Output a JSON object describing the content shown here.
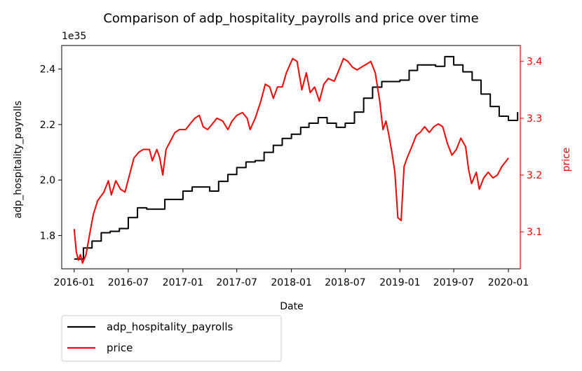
{
  "chart_data": {
    "type": "line",
    "title": "Comparison of adp_hospitality_payrolls and price over time",
    "xlabel": "Date",
    "ylabel_left": "adp_hospitality_payrolls",
    "ylabel_right": "price",
    "left_offset_text": "1e35",
    "x_ticks": [
      "2016-01",
      "2016-07",
      "2017-01",
      "2017-07",
      "2018-01",
      "2018-07",
      "2019-01",
      "2019-07",
      "2020-01"
    ],
    "y_left_ticks": [
      "1.8",
      "2.0",
      "2.2",
      "2.4"
    ],
    "y_right_ticks": [
      "3.1",
      "3.2",
      "3.3",
      "3.4"
    ],
    "xlim": [
      "2015-11-20",
      "2020-02-10"
    ],
    "ylim_left": [
      1.68,
      2.485
    ],
    "ylim_right": [
      3.035,
      3.428
    ],
    "legend_position": "below-left",
    "colors": {
      "adp_hospitality_payrolls": "#000000",
      "price": "#ff0000"
    },
    "series": [
      {
        "name": "adp_hospitality_payrolls",
        "axis": "left",
        "color": "#000000",
        "step": true,
        "points": [
          [
            "2016-01-01",
            1.715
          ],
          [
            "2016-02-01",
            1.755
          ],
          [
            "2016-03-01",
            1.78
          ],
          [
            "2016-04-01",
            1.81
          ],
          [
            "2016-05-01",
            1.815
          ],
          [
            "2016-06-01",
            1.825
          ],
          [
            "2016-07-01",
            1.865
          ],
          [
            "2016-08-01",
            1.9
          ],
          [
            "2016-09-01",
            1.895
          ],
          [
            "2016-10-01",
            1.895
          ],
          [
            "2016-11-01",
            1.93
          ],
          [
            "2016-12-01",
            1.93
          ],
          [
            "2017-01-01",
            1.96
          ],
          [
            "2017-02-01",
            1.975
          ],
          [
            "2017-03-01",
            1.975
          ],
          [
            "2017-04-01",
            1.96
          ],
          [
            "2017-05-01",
            1.995
          ],
          [
            "2017-06-01",
            2.02
          ],
          [
            "2017-07-01",
            2.045
          ],
          [
            "2017-08-01",
            2.065
          ],
          [
            "2017-09-01",
            2.07
          ],
          [
            "2017-10-01",
            2.1
          ],
          [
            "2017-11-01",
            2.125
          ],
          [
            "2017-12-01",
            2.15
          ],
          [
            "2018-01-01",
            2.165
          ],
          [
            "2018-02-01",
            2.19
          ],
          [
            "2018-03-01",
            2.205
          ],
          [
            "2018-04-01",
            2.225
          ],
          [
            "2018-05-01",
            2.205
          ],
          [
            "2018-06-01",
            2.19
          ],
          [
            "2018-07-01",
            2.205
          ],
          [
            "2018-08-01",
            2.245
          ],
          [
            "2018-09-01",
            2.295
          ],
          [
            "2018-10-01",
            2.335
          ],
          [
            "2018-11-01",
            2.355
          ],
          [
            "2018-12-01",
            2.355
          ],
          [
            "2019-01-01",
            2.36
          ],
          [
            "2019-02-01",
            2.395
          ],
          [
            "2019-03-01",
            2.415
          ],
          [
            "2019-04-01",
            2.415
          ],
          [
            "2019-05-01",
            2.41
          ],
          [
            "2019-06-01",
            2.445
          ],
          [
            "2019-07-01",
            2.415
          ],
          [
            "2019-08-01",
            2.39
          ],
          [
            "2019-09-01",
            2.36
          ],
          [
            "2019-10-01",
            2.31
          ],
          [
            "2019-11-01",
            2.265
          ],
          [
            "2019-12-01",
            2.23
          ],
          [
            "2020-01-01",
            2.215
          ],
          [
            "2020-02-01",
            2.245
          ]
        ]
      },
      {
        "name": "price",
        "axis": "right",
        "color": "#ff0000",
        "step": false,
        "points": [
          [
            "2016-01-01",
            3.105
          ],
          [
            "2016-01-08",
            3.065
          ],
          [
            "2016-01-15",
            3.05
          ],
          [
            "2016-01-22",
            3.06
          ],
          [
            "2016-01-29",
            3.045
          ],
          [
            "2016-02-10",
            3.06
          ],
          [
            "2016-02-20",
            3.09
          ],
          [
            "2016-03-05",
            3.13
          ],
          [
            "2016-03-20",
            3.155
          ],
          [
            "2016-04-10",
            3.17
          ],
          [
            "2016-04-25",
            3.19
          ],
          [
            "2016-05-05",
            3.165
          ],
          [
            "2016-05-20",
            3.19
          ],
          [
            "2016-06-05",
            3.175
          ],
          [
            "2016-06-20",
            3.17
          ],
          [
            "2016-07-05",
            3.2
          ],
          [
            "2016-07-20",
            3.23
          ],
          [
            "2016-08-05",
            3.24
          ],
          [
            "2016-08-20",
            3.245
          ],
          [
            "2016-09-10",
            3.245
          ],
          [
            "2016-09-20",
            3.225
          ],
          [
            "2016-10-05",
            3.245
          ],
          [
            "2016-10-15",
            3.23
          ],
          [
            "2016-10-25",
            3.2
          ],
          [
            "2016-11-05",
            3.245
          ],
          [
            "2016-11-20",
            3.26
          ],
          [
            "2016-12-05",
            3.275
          ],
          [
            "2016-12-20",
            3.28
          ],
          [
            "2017-01-10",
            3.28
          ],
          [
            "2017-01-25",
            3.29
          ],
          [
            "2017-02-10",
            3.3
          ],
          [
            "2017-02-25",
            3.305
          ],
          [
            "2017-03-10",
            3.285
          ],
          [
            "2017-03-25",
            3.28
          ],
          [
            "2017-04-10",
            3.29
          ],
          [
            "2017-04-25",
            3.3
          ],
          [
            "2017-05-15",
            3.295
          ],
          [
            "2017-06-01",
            3.28
          ],
          [
            "2017-06-15",
            3.295
          ],
          [
            "2017-07-01",
            3.305
          ],
          [
            "2017-07-20",
            3.31
          ],
          [
            "2017-08-05",
            3.3
          ],
          [
            "2017-08-15",
            3.28
          ],
          [
            "2017-09-01",
            3.3
          ],
          [
            "2017-09-20",
            3.33
          ],
          [
            "2017-10-05",
            3.36
          ],
          [
            "2017-10-20",
            3.355
          ],
          [
            "2017-11-01",
            3.335
          ],
          [
            "2017-11-15",
            3.355
          ],
          [
            "2017-12-01",
            3.355
          ],
          [
            "2017-12-15",
            3.38
          ],
          [
            "2018-01-05",
            3.405
          ],
          [
            "2018-01-20",
            3.4
          ],
          [
            "2018-02-05",
            3.35
          ],
          [
            "2018-02-20",
            3.38
          ],
          [
            "2018-03-05",
            3.345
          ],
          [
            "2018-03-20",
            3.355
          ],
          [
            "2018-04-05",
            3.33
          ],
          [
            "2018-04-20",
            3.36
          ],
          [
            "2018-05-05",
            3.37
          ],
          [
            "2018-05-25",
            3.365
          ],
          [
            "2018-06-10",
            3.385
          ],
          [
            "2018-06-25",
            3.405
          ],
          [
            "2018-07-10",
            3.4
          ],
          [
            "2018-07-25",
            3.39
          ],
          [
            "2018-08-10",
            3.385
          ],
          [
            "2018-08-25",
            3.39
          ],
          [
            "2018-09-10",
            3.395
          ],
          [
            "2018-09-25",
            3.4
          ],
          [
            "2018-10-10",
            3.38
          ],
          [
            "2018-10-25",
            3.33
          ],
          [
            "2018-11-05",
            3.28
          ],
          [
            "2018-11-15",
            3.295
          ],
          [
            "2018-11-25",
            3.27
          ],
          [
            "2018-12-05",
            3.24
          ],
          [
            "2018-12-15",
            3.205
          ],
          [
            "2018-12-25",
            3.125
          ],
          [
            "2019-01-05",
            3.12
          ],
          [
            "2019-01-15",
            3.215
          ],
          [
            "2019-01-25",
            3.23
          ],
          [
            "2019-02-10",
            3.25
          ],
          [
            "2019-02-25",
            3.27
          ],
          [
            "2019-03-10",
            3.275
          ],
          [
            "2019-03-25",
            3.285
          ],
          [
            "2019-04-10",
            3.275
          ],
          [
            "2019-04-25",
            3.285
          ],
          [
            "2019-05-10",
            3.29
          ],
          [
            "2019-05-25",
            3.285
          ],
          [
            "2019-06-10",
            3.255
          ],
          [
            "2019-06-25",
            3.235
          ],
          [
            "2019-07-10",
            3.245
          ],
          [
            "2019-07-25",
            3.265
          ],
          [
            "2019-08-10",
            3.25
          ],
          [
            "2019-08-20",
            3.21
          ],
          [
            "2019-08-30",
            3.185
          ],
          [
            "2019-09-15",
            3.205
          ],
          [
            "2019-09-25",
            3.175
          ],
          [
            "2019-10-10",
            3.195
          ],
          [
            "2019-10-25",
            3.205
          ],
          [
            "2019-11-10",
            3.195
          ],
          [
            "2019-11-25",
            3.2
          ],
          [
            "2019-12-10",
            3.215
          ],
          [
            "2019-12-25",
            3.225
          ],
          [
            "2020-01-01",
            3.23
          ]
        ]
      }
    ]
  }
}
